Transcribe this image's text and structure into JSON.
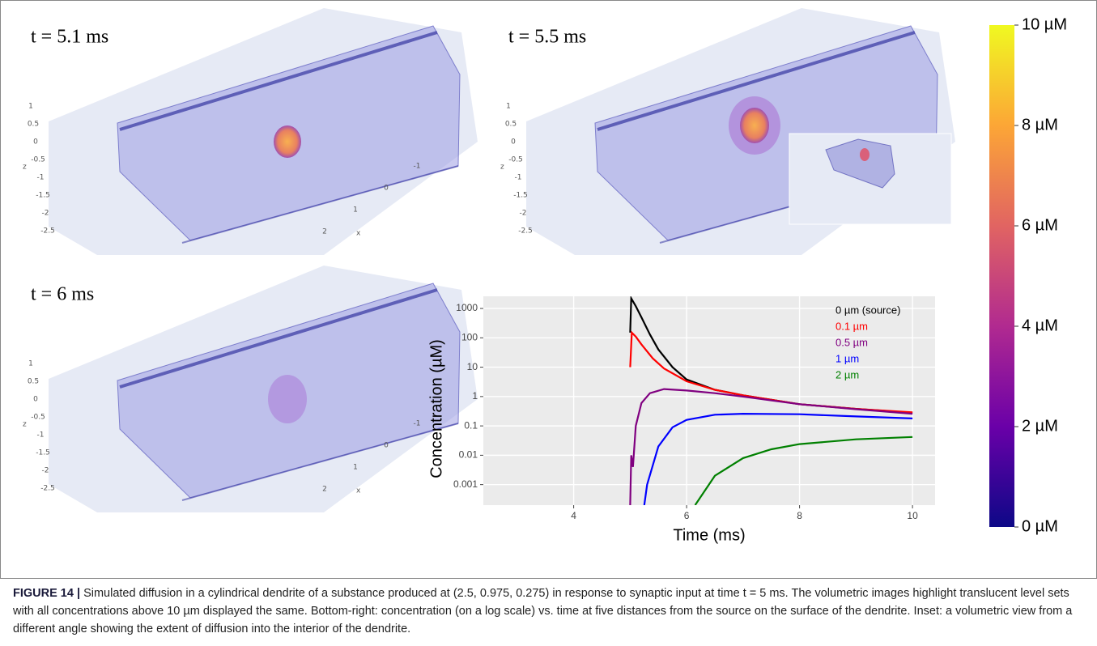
{
  "panels": [
    {
      "label": "t = 5.1 ms",
      "z_ticks": [
        "1",
        "0.5",
        "0",
        "-0.5",
        "-1",
        "-1.5",
        "-2",
        "-2.5"
      ],
      "z_label": "z",
      "x_ticks": [
        "-1",
        "0",
        "1",
        "2"
      ],
      "x_label": "x"
    },
    {
      "label": "t = 5.5 ms",
      "z_ticks": [
        "1",
        "0.5",
        "0",
        "-0.5",
        "-1",
        "-1.5",
        "-2",
        "-2.5"
      ],
      "z_label": "z"
    },
    {
      "label": "t = 6 ms",
      "z_ticks": [
        "1",
        "0.5",
        "0",
        "-0.5",
        "-1",
        "-1.5",
        "-2",
        "-2.5"
      ],
      "z_label": "z",
      "x_ticks": [
        "-1",
        "0",
        "1",
        "2"
      ],
      "x_label": "x"
    }
  ],
  "colorbar": {
    "lim": [
      0,
      10
    ],
    "ticks": [
      {
        "value": 0,
        "label": "0 µM"
      },
      {
        "value": 2,
        "label": "2 µM"
      },
      {
        "value": 4,
        "label": "4 µM"
      },
      {
        "value": 6,
        "label": "6 µM"
      },
      {
        "value": 8,
        "label": "8 µM"
      },
      {
        "value": 10,
        "label": "10 µM"
      }
    ]
  },
  "chart_data": {
    "type": "line",
    "x_label": "Time (ms)",
    "y_label": "Concentration (µM)",
    "xlim": [
      2.4,
      10.4
    ],
    "xticks": [
      4,
      6,
      8,
      10
    ],
    "ylim": [
      0.0002,
      2600
    ],
    "yticks": [
      0.001,
      0.01,
      0.1,
      1,
      10,
      100,
      1000
    ],
    "log_y": true,
    "grid": true,
    "series": [
      {
        "name": "0 µm (source)",
        "color": "#000000",
        "x": [
          5.0,
          5.02,
          5.1,
          5.2,
          5.35,
          5.5,
          5.75,
          6,
          6.5,
          7,
          8,
          9,
          10
        ],
        "values": [
          150,
          2200,
          1200,
          500,
          130,
          40,
          10,
          3.8,
          1.7,
          1.1,
          0.55,
          0.38,
          0.28
        ]
      },
      {
        "name": "0.1 µm",
        "color": "#ff0000",
        "x": [
          5.0,
          5.03,
          5.1,
          5.2,
          5.4,
          5.6,
          6,
          6.5,
          7,
          8,
          9,
          10
        ],
        "values": [
          10,
          150,
          110,
          60,
          20,
          9,
          3.3,
          1.7,
          1.1,
          0.55,
          0.38,
          0.29
        ]
      },
      {
        "name": "0.5 µm",
        "color": "#800080",
        "x": [
          5.0,
          5.02,
          5.05,
          5.1,
          5.2,
          5.35,
          5.6,
          6,
          6.5,
          7,
          8,
          9,
          10
        ],
        "values": [
          0.0002,
          0.01,
          0.004,
          0.1,
          0.6,
          1.3,
          1.8,
          1.6,
          1.3,
          1.0,
          0.55,
          0.37,
          0.26
        ]
      },
      {
        "name": "1 µm",
        "color": "#0000ff",
        "x": [
          5.25,
          5.3,
          5.5,
          5.75,
          6,
          6.5,
          7,
          8,
          9,
          10
        ],
        "values": [
          0.0002,
          0.001,
          0.02,
          0.09,
          0.16,
          0.24,
          0.26,
          0.25,
          0.21,
          0.18
        ]
      },
      {
        "name": "2 µm",
        "color": "#008000",
        "x": [
          6.15,
          6.5,
          7,
          7.5,
          8,
          9,
          10
        ],
        "values": [
          0.0002,
          0.002,
          0.008,
          0.016,
          0.024,
          0.035,
          0.042
        ]
      }
    ]
  },
  "caption": {
    "label": "FIGURE 14 |",
    "text": "Simulated diffusion in a cylindrical dendrite of a substance produced at (2.5, 0.975, 0.275) in response to synaptic input at time t = 5 ms. The volumetric images highlight translucent level sets with all concentrations above 10 µm displayed the same. Bottom-right: concentration (on a log scale) vs. time at five distances from the source on the surface of the dendrite. Inset: a volumetric view from a different angle showing the extent of diffusion into the interior of the dendrite."
  }
}
